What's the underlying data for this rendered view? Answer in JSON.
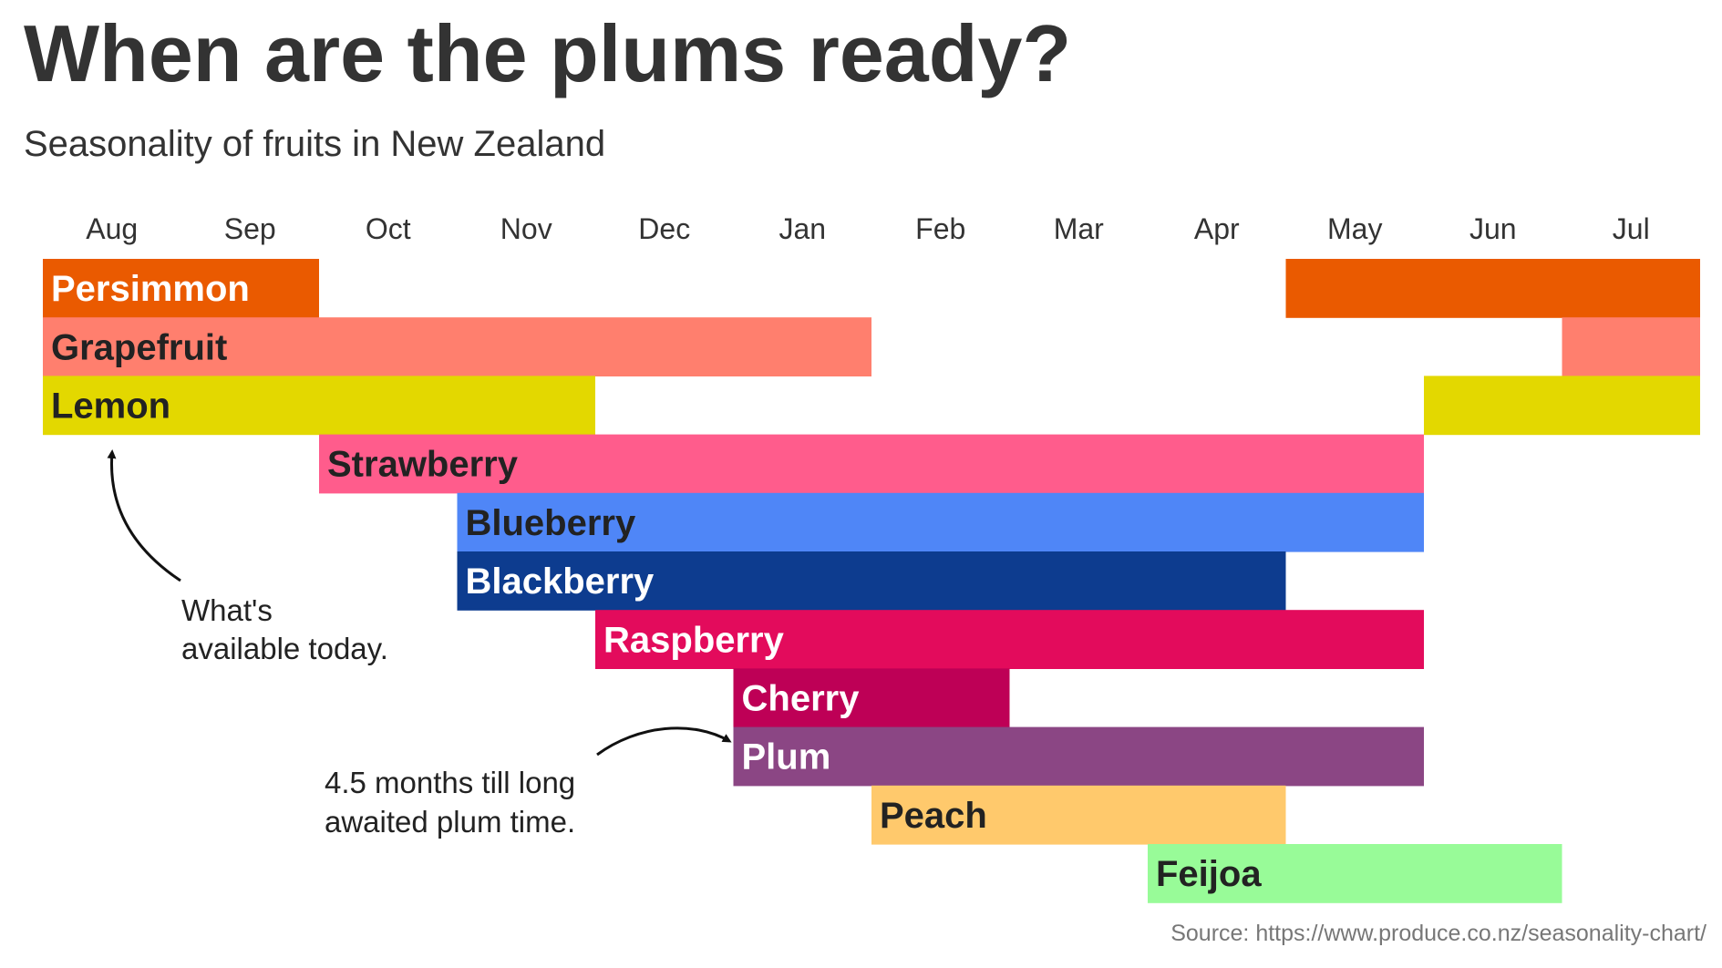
{
  "title": "When are the plums ready?",
  "subtitle": "Seasonality of fruits in New Zealand",
  "source": "Source: https://www.produce.co.nz/seasonality-chart/",
  "chart_data": {
    "type": "gantt",
    "months": [
      "Aug",
      "Sep",
      "Oct",
      "Nov",
      "Dec",
      "Jan",
      "Feb",
      "Mar",
      "Apr",
      "May",
      "Jun",
      "Jul"
    ],
    "series": [
      {
        "name": "Persimmon",
        "color": "#EA5A00",
        "label_color": "#ffffff",
        "ranges": [
          [
            "Aug",
            "Sep"
          ],
          [
            "May",
            "Jul"
          ]
        ]
      },
      {
        "name": "Grapefruit",
        "color": "#FF7F6E",
        "label_color": "#222222",
        "ranges": [
          [
            "Aug",
            "Jan"
          ],
          [
            "Jul",
            "Jul"
          ]
        ]
      },
      {
        "name": "Lemon",
        "color": "#E3D800",
        "label_color": "#222222",
        "ranges": [
          [
            "Aug",
            "Nov"
          ],
          [
            "Jun",
            "Jul"
          ]
        ]
      },
      {
        "name": "Strawberry",
        "color": "#FF5C8C",
        "label_color": "#222222",
        "ranges": [
          [
            "Oct",
            "May"
          ]
        ]
      },
      {
        "name": "Blueberry",
        "color": "#4F86F7",
        "label_color": "#222222",
        "ranges": [
          [
            "Nov",
            "May"
          ]
        ]
      },
      {
        "name": "Blackberry",
        "color": "#0D3C8F",
        "label_color": "#ffffff",
        "ranges": [
          [
            "Nov",
            "Apr"
          ]
        ]
      },
      {
        "name": "Raspberry",
        "color": "#E30B5C",
        "label_color": "#ffffff",
        "ranges": [
          [
            "Dec",
            "May"
          ]
        ]
      },
      {
        "name": "Cherry",
        "color": "#BE0056",
        "label_color": "#ffffff",
        "ranges": [
          [
            "Jan",
            "Feb"
          ]
        ]
      },
      {
        "name": "Plum",
        "color": "#8B4684",
        "label_color": "#ffffff",
        "ranges": [
          [
            "Jan",
            "May"
          ]
        ]
      },
      {
        "name": "Peach",
        "color": "#FFC96C",
        "label_color": "#222222",
        "ranges": [
          [
            "Feb",
            "Apr"
          ]
        ]
      },
      {
        "name": "Feijoa",
        "color": "#98FB98",
        "label_color": "#222222",
        "ranges": [
          [
            "Apr",
            "Jun"
          ]
        ]
      }
    ],
    "annotations": [
      {
        "text": [
          "What's",
          "available today."
        ],
        "points_to": "Lemon"
      },
      {
        "text": [
          "4.5 months till long",
          "awaited plum time."
        ],
        "points_to": "Plum"
      }
    ]
  }
}
